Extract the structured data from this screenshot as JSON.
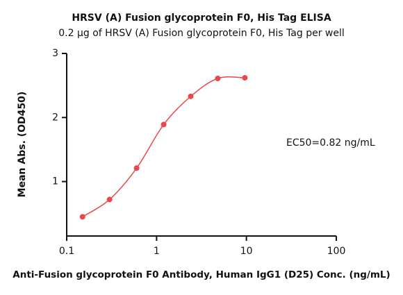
{
  "chart_data": {
    "type": "line",
    "title": "HRSV (A) Fusion glycoprotein F0, His Tag ELISA",
    "subtitle": "0.2 μg of HRSV (A) Fusion glycoprotein F0, His Tag per well",
    "annotation": "EC50=0.82 ng/mL",
    "x_label": "Anti-Fusion glycoprotein F0 Antibody, Human IgG1 (D25) Conc. (ng/mL)",
    "y_label": "Mean Abs. (OD450)",
    "x_scale": "log",
    "x": [
      0.15,
      0.3,
      0.6,
      1.2,
      2.4,
      4.8,
      9.6
    ],
    "series": [
      {
        "color": "#e8474b",
        "values": [
          0.45,
          0.72,
          1.21,
          1.89,
          2.33,
          2.61,
          2.62
        ]
      }
    ],
    "xlim": [
      0.1,
      100
    ],
    "xticks": [
      0.1,
      1,
      10,
      100
    ],
    "ylim": [
      0.15,
      3
    ],
    "yticks": [
      1,
      2,
      3
    ]
  }
}
